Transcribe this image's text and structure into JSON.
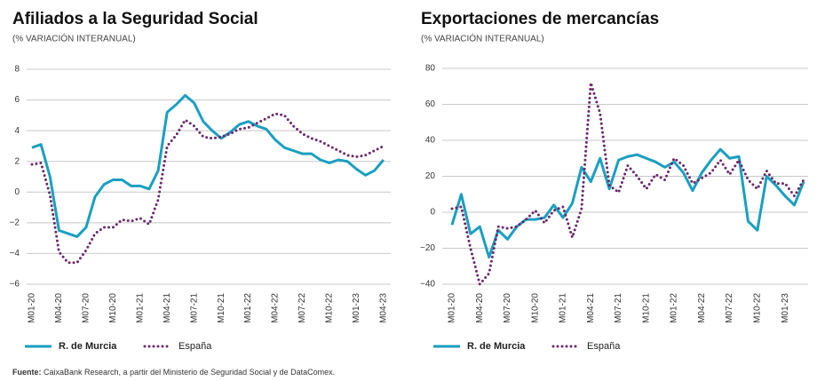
{
  "chart_data": [
    {
      "type": "line",
      "title": "Afiliados a la Seguridad Social",
      "subtitle": "(% VARIACIÓN INTERANUAL)",
      "categories": [
        "M01-20",
        null,
        null,
        "M04-20",
        null,
        null,
        "M07-20",
        null,
        null,
        "M10-20",
        null,
        null,
        "M01-21",
        null,
        null,
        "M04-21",
        null,
        null,
        "M07-21",
        null,
        null,
        "M10-21",
        null,
        null,
        "M01-22",
        null,
        null,
        "M04-22",
        null,
        null,
        "M07-22",
        null,
        null,
        "M10-22",
        null,
        null,
        "M01-23",
        null,
        null,
        "M04-23"
      ],
      "series": [
        {
          "name": "R. de Murcia",
          "color": "#1a9fc1",
          "values": [
            2.9,
            3.1,
            1.0,
            -2.5,
            -2.7,
            -2.9,
            -2.3,
            -0.3,
            0.5,
            0.8,
            0.8,
            0.4,
            0.4,
            0.2,
            1.4,
            5.2,
            5.7,
            6.3,
            5.8,
            4.6,
            4.0,
            3.5,
            3.9,
            4.4,
            4.6,
            4.3,
            4.1,
            3.4,
            2.9,
            2.7,
            2.5,
            2.5,
            2.1,
            1.9,
            2.1,
            2.0,
            1.5,
            1.1,
            1.4,
            2.1
          ]
        },
        {
          "name": "España",
          "color": "#6b2a6b",
          "values": [
            1.8,
            1.9,
            -0.2,
            -3.9,
            -4.6,
            -4.6,
            -3.8,
            -2.7,
            -2.3,
            -2.3,
            -1.8,
            -1.9,
            -1.7,
            -2.1,
            -0.5,
            3.0,
            3.7,
            4.7,
            4.3,
            3.6,
            3.5,
            3.6,
            3.8,
            4.1,
            4.2,
            4.5,
            4.8,
            5.1,
            5.0,
            4.3,
            3.8,
            3.5,
            3.3,
            3.0,
            2.7,
            2.4,
            2.3,
            2.4,
            2.7,
            3.0
          ]
        }
      ],
      "ylim": [
        -6,
        8
      ],
      "yticks": [
        {
          "value": -6,
          "label": "−6"
        },
        {
          "value": -4,
          "label": "−4"
        },
        {
          "value": -2,
          "label": "−2"
        },
        0,
        2,
        4,
        6,
        8
      ],
      "grid": true
    },
    {
      "type": "line",
      "title": "Exportaciones de mercancías",
      "subtitle": "(% VARIACIÓN INTERANUAL)",
      "categories": [
        "M01-20",
        null,
        null,
        "M04-20",
        null,
        null,
        "M07-20",
        null,
        null,
        "M10-20",
        null,
        null,
        "M01-21",
        null,
        null,
        "M04-21",
        null,
        null,
        "M07-21",
        null,
        null,
        "M10-21",
        null,
        null,
        "M01-22",
        null,
        null,
        "M04-22",
        null,
        null,
        "M07-22",
        null,
        null,
        "M10-22",
        null,
        null,
        "M01-23",
        null,
        null
      ],
      "series": [
        {
          "name": "R. de Murcia",
          "color": "#1a9fc1",
          "values": [
            -7,
            10,
            -12,
            -8,
            -25,
            -10,
            -15,
            -8,
            -4,
            -4,
            -3,
            4,
            -3,
            5,
            25,
            17,
            30,
            13,
            29,
            31,
            32,
            30,
            28,
            25,
            28,
            22,
            12,
            22,
            29,
            35,
            30,
            31,
            -5,
            -10,
            20,
            15,
            9,
            4,
            17
          ]
        },
        {
          "name": "España",
          "color": "#6b2a6b",
          "values": [
            2,
            3,
            -20,
            -40,
            -34,
            -8,
            -9,
            -8,
            -4,
            1,
            -6,
            1,
            3,
            -14,
            2,
            72,
            55,
            15,
            11,
            26,
            20,
            13,
            21,
            18,
            30,
            26,
            16,
            19,
            22,
            29,
            21,
            29,
            18,
            13,
            23,
            16,
            16,
            9,
            18
          ]
        }
      ],
      "ylim": [
        -40,
        80
      ],
      "yticks": [
        {
          "value": -40,
          "label": "−40"
        },
        {
          "value": -20,
          "label": "−20"
        },
        0,
        20,
        40,
        60,
        80
      ],
      "grid": true
    }
  ],
  "footer": {
    "label": "Fuente:",
    "text": "CaixaBank Research, a partir del Ministerio de Seguridad Social y de DataComex."
  }
}
